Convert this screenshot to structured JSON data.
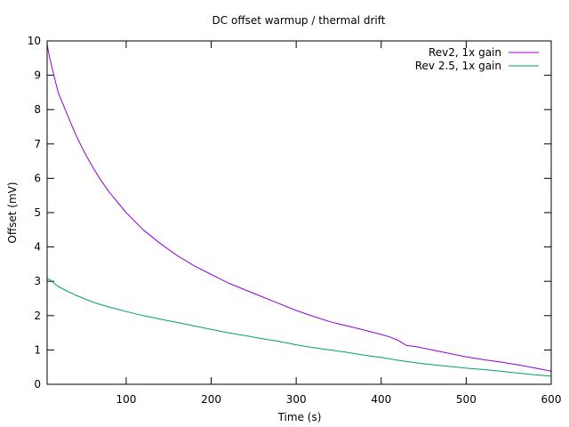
{
  "chart_data": {
    "type": "line",
    "title": "DC offset warmup / thermal drift",
    "xlabel": "Time (s)",
    "ylabel": "Offset (mV)",
    "xlim": [
      7,
      600
    ],
    "ylim": [
      0,
      10
    ],
    "x_ticks": [
      100,
      200,
      300,
      400,
      500,
      600
    ],
    "y_ticks": [
      0,
      1,
      2,
      3,
      4,
      5,
      6,
      7,
      8,
      9,
      10
    ],
    "grid": false,
    "legend_position": "top-right",
    "series": [
      {
        "name": "Rev2, 1x gain",
        "color": "#9400d3",
        "x": [
          7,
          10,
          15,
          20,
          30,
          40,
          50,
          60,
          70,
          80,
          100,
          120,
          140,
          160,
          180,
          200,
          220,
          240,
          260,
          280,
          300,
          320,
          340,
          360,
          380,
          400,
          410,
          420,
          425,
          430,
          440,
          460,
          480,
          500,
          520,
          540,
          560,
          580,
          600
        ],
        "y": [
          9.9,
          9.5,
          9.0,
          8.5,
          7.9,
          7.3,
          6.8,
          6.35,
          5.95,
          5.6,
          5.0,
          4.5,
          4.1,
          3.75,
          3.45,
          3.2,
          2.95,
          2.75,
          2.55,
          2.35,
          2.15,
          1.98,
          1.82,
          1.7,
          1.58,
          1.45,
          1.38,
          1.28,
          1.2,
          1.13,
          1.1,
          1.0,
          0.9,
          0.8,
          0.72,
          0.65,
          0.57,
          0.48,
          0.38
        ]
      },
      {
        "name": "Rev 2.5, 1x gain",
        "color": "#009e73",
        "x": [
          7,
          10,
          15,
          20,
          30,
          40,
          50,
          60,
          70,
          80,
          100,
          120,
          140,
          160,
          180,
          200,
          220,
          240,
          260,
          280,
          300,
          320,
          340,
          360,
          380,
          400,
          420,
          440,
          460,
          480,
          500,
          520,
          540,
          560,
          580,
          600
        ],
        "y": [
          3.08,
          3.05,
          2.95,
          2.85,
          2.72,
          2.6,
          2.5,
          2.4,
          2.32,
          2.25,
          2.12,
          2.0,
          1.9,
          1.8,
          1.7,
          1.6,
          1.5,
          1.42,
          1.33,
          1.25,
          1.15,
          1.07,
          1.0,
          0.93,
          0.85,
          0.78,
          0.7,
          0.63,
          0.57,
          0.52,
          0.47,
          0.43,
          0.38,
          0.33,
          0.28,
          0.24
        ]
      }
    ]
  }
}
